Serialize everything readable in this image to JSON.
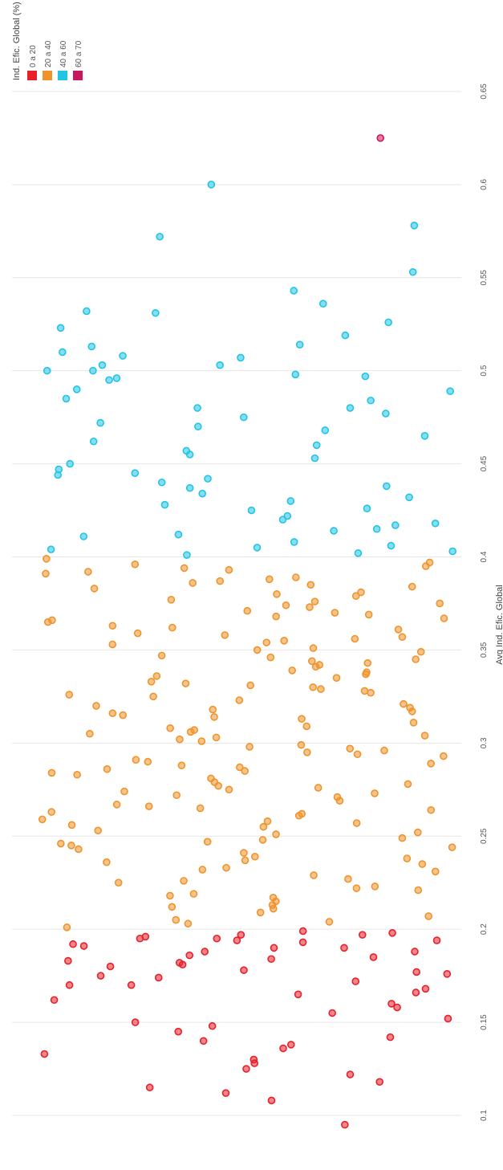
{
  "chart_data": {
    "type": "strip",
    "legend_title": "Ind. Efic. Global (%)",
    "y_label": "Avg Ind. Efic. Global",
    "ylim": [
      0.078,
      0.656
    ],
    "yticks": [
      0.1,
      0.15,
      0.2,
      0.25,
      0.3,
      0.35,
      0.4,
      0.45,
      0.5,
      0.55,
      0.6,
      0.65
    ],
    "grid": true,
    "series": [
      {
        "name": "0 a 20",
        "color": "#e8202a",
        "values": [
          0.095,
          0.108,
          0.112,
          0.115,
          0.118,
          0.122,
          0.125,
          0.128,
          0.13,
          0.133,
          0.136,
          0.138,
          0.14,
          0.142,
          0.145,
          0.148,
          0.15,
          0.152,
          0.155,
          0.158,
          0.16,
          0.162,
          0.165,
          0.168,
          0.17,
          0.172,
          0.175,
          0.177,
          0.18,
          0.182,
          0.184,
          0.186,
          0.188,
          0.19,
          0.191,
          0.193,
          0.194,
          0.195,
          0.196,
          0.197,
          0.198,
          0.199,
          0.17,
          0.178,
          0.185,
          0.19,
          0.192,
          0.195,
          0.176,
          0.188,
          0.194,
          0.181,
          0.197,
          0.183,
          0.166,
          0.174
        ]
      },
      {
        "name": "20 a 40",
        "color": "#f0932b",
        "values": [
          0.201,
          0.203,
          0.205,
          0.207,
          0.209,
          0.211,
          0.213,
          0.215,
          0.217,
          0.219,
          0.221,
          0.223,
          0.225,
          0.227,
          0.229,
          0.231,
          0.233,
          0.235,
          0.237,
          0.239,
          0.241,
          0.243,
          0.245,
          0.247,
          0.249,
          0.251,
          0.253,
          0.255,
          0.257,
          0.259,
          0.261,
          0.263,
          0.265,
          0.267,
          0.269,
          0.271,
          0.273,
          0.275,
          0.277,
          0.279,
          0.281,
          0.283,
          0.285,
          0.287,
          0.289,
          0.291,
          0.293,
          0.295,
          0.297,
          0.299,
          0.301,
          0.303,
          0.305,
          0.307,
          0.309,
          0.311,
          0.313,
          0.315,
          0.317,
          0.319,
          0.321,
          0.323,
          0.325,
          0.327,
          0.329,
          0.331,
          0.333,
          0.335,
          0.337,
          0.339,
          0.341,
          0.343,
          0.345,
          0.347,
          0.349,
          0.351,
          0.353,
          0.355,
          0.357,
          0.359,
          0.361,
          0.363,
          0.365,
          0.367,
          0.369,
          0.371,
          0.373,
          0.375,
          0.377,
          0.379,
          0.381,
          0.383,
          0.385,
          0.387,
          0.389,
          0.391,
          0.393,
          0.395,
          0.397,
          0.399,
          0.212,
          0.226,
          0.238,
          0.244,
          0.252,
          0.258,
          0.264,
          0.272,
          0.278,
          0.284,
          0.29,
          0.296,
          0.302,
          0.308,
          0.314,
          0.32,
          0.326,
          0.332,
          0.338,
          0.344,
          0.35,
          0.356,
          0.362,
          0.368,
          0.374,
          0.38,
          0.386,
          0.392,
          0.218,
          0.232,
          0.246,
          0.256,
          0.266,
          0.276,
          0.286,
          0.298,
          0.306,
          0.316,
          0.328,
          0.336,
          0.346,
          0.358,
          0.366,
          0.376,
          0.388,
          0.396,
          0.204,
          0.222,
          0.236,
          0.248,
          0.262,
          0.274,
          0.288,
          0.294,
          0.304,
          0.318,
          0.33,
          0.342,
          0.354,
          0.37,
          0.384,
          0.394
        ]
      },
      {
        "name": "40 a 60",
        "color": "#22c4e6",
        "values": [
          0.6,
          0.572,
          0.553,
          0.543,
          0.578,
          0.536,
          0.532,
          0.526,
          0.523,
          0.531,
          0.519,
          0.514,
          0.513,
          0.51,
          0.508,
          0.507,
          0.503,
          0.503,
          0.5,
          0.5,
          0.498,
          0.497,
          0.496,
          0.495,
          0.49,
          0.489,
          0.485,
          0.484,
          0.48,
          0.48,
          0.477,
          0.475,
          0.472,
          0.47,
          0.468,
          0.465,
          0.462,
          0.46,
          0.457,
          0.455,
          0.453,
          0.45,
          0.447,
          0.445,
          0.442,
          0.44,
          0.437,
          0.434,
          0.43,
          0.428,
          0.425,
          0.422,
          0.42,
          0.417,
          0.414,
          0.411,
          0.408,
          0.405,
          0.403,
          0.401,
          0.444,
          0.432,
          0.418,
          0.406,
          0.426,
          0.412,
          0.438,
          0.402,
          0.415,
          0.404
        ]
      },
      {
        "name": "60 a 70",
        "color": "#c8175d",
        "values": [
          0.625
        ]
      }
    ]
  }
}
